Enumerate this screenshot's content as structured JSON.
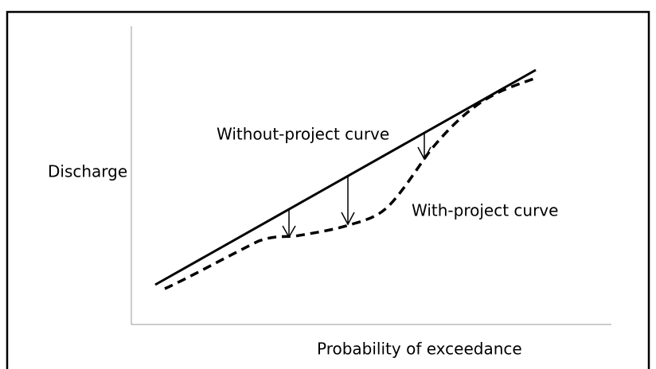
{
  "labels": {
    "without_project": "Without-project curve",
    "with_project": "With-project curve"
  },
  "axes": {
    "y_label": "Discharge",
    "x_label": "Probability of exceedance"
  }
}
